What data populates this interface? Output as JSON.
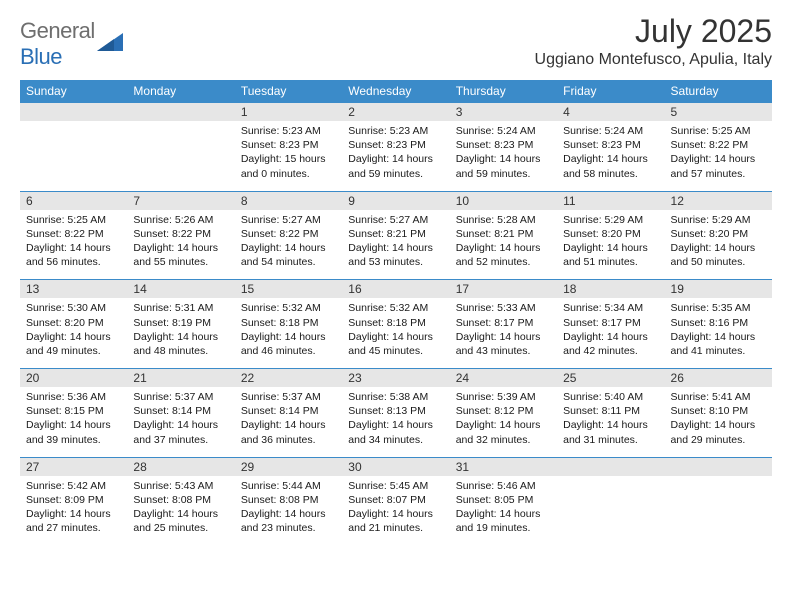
{
  "logo": {
    "text_gray": "General",
    "text_blue": "Blue"
  },
  "title": "July 2025",
  "location": "Uggiano Montefusco, Apulia, Italy",
  "colors": {
    "header_bar": "#3b8bc9",
    "daynum_bg": "#e6e6e6",
    "rule": "#3b8bc9",
    "logo_gray": "#6e6e6e",
    "logo_blue": "#2a6fb5"
  },
  "weekdays": [
    "Sunday",
    "Monday",
    "Tuesday",
    "Wednesday",
    "Thursday",
    "Friday",
    "Saturday"
  ],
  "weeks": [
    [
      null,
      null,
      {
        "n": "1",
        "sr": "5:23 AM",
        "ss": "8:23 PM",
        "dl": "15 hours and 0 minutes."
      },
      {
        "n": "2",
        "sr": "5:23 AM",
        "ss": "8:23 PM",
        "dl": "14 hours and 59 minutes."
      },
      {
        "n": "3",
        "sr": "5:24 AM",
        "ss": "8:23 PM",
        "dl": "14 hours and 59 minutes."
      },
      {
        "n": "4",
        "sr": "5:24 AM",
        "ss": "8:23 PM",
        "dl": "14 hours and 58 minutes."
      },
      {
        "n": "5",
        "sr": "5:25 AM",
        "ss": "8:22 PM",
        "dl": "14 hours and 57 minutes."
      }
    ],
    [
      {
        "n": "6",
        "sr": "5:25 AM",
        "ss": "8:22 PM",
        "dl": "14 hours and 56 minutes."
      },
      {
        "n": "7",
        "sr": "5:26 AM",
        "ss": "8:22 PM",
        "dl": "14 hours and 55 minutes."
      },
      {
        "n": "8",
        "sr": "5:27 AM",
        "ss": "8:22 PM",
        "dl": "14 hours and 54 minutes."
      },
      {
        "n": "9",
        "sr": "5:27 AM",
        "ss": "8:21 PM",
        "dl": "14 hours and 53 minutes."
      },
      {
        "n": "10",
        "sr": "5:28 AM",
        "ss": "8:21 PM",
        "dl": "14 hours and 52 minutes."
      },
      {
        "n": "11",
        "sr": "5:29 AM",
        "ss": "8:20 PM",
        "dl": "14 hours and 51 minutes."
      },
      {
        "n": "12",
        "sr": "5:29 AM",
        "ss": "8:20 PM",
        "dl": "14 hours and 50 minutes."
      }
    ],
    [
      {
        "n": "13",
        "sr": "5:30 AM",
        "ss": "8:20 PM",
        "dl": "14 hours and 49 minutes."
      },
      {
        "n": "14",
        "sr": "5:31 AM",
        "ss": "8:19 PM",
        "dl": "14 hours and 48 minutes."
      },
      {
        "n": "15",
        "sr": "5:32 AM",
        "ss": "8:18 PM",
        "dl": "14 hours and 46 minutes."
      },
      {
        "n": "16",
        "sr": "5:32 AM",
        "ss": "8:18 PM",
        "dl": "14 hours and 45 minutes."
      },
      {
        "n": "17",
        "sr": "5:33 AM",
        "ss": "8:17 PM",
        "dl": "14 hours and 43 minutes."
      },
      {
        "n": "18",
        "sr": "5:34 AM",
        "ss": "8:17 PM",
        "dl": "14 hours and 42 minutes."
      },
      {
        "n": "19",
        "sr": "5:35 AM",
        "ss": "8:16 PM",
        "dl": "14 hours and 41 minutes."
      }
    ],
    [
      {
        "n": "20",
        "sr": "5:36 AM",
        "ss": "8:15 PM",
        "dl": "14 hours and 39 minutes."
      },
      {
        "n": "21",
        "sr": "5:37 AM",
        "ss": "8:14 PM",
        "dl": "14 hours and 37 minutes."
      },
      {
        "n": "22",
        "sr": "5:37 AM",
        "ss": "8:14 PM",
        "dl": "14 hours and 36 minutes."
      },
      {
        "n": "23",
        "sr": "5:38 AM",
        "ss": "8:13 PM",
        "dl": "14 hours and 34 minutes."
      },
      {
        "n": "24",
        "sr": "5:39 AM",
        "ss": "8:12 PM",
        "dl": "14 hours and 32 minutes."
      },
      {
        "n": "25",
        "sr": "5:40 AM",
        "ss": "8:11 PM",
        "dl": "14 hours and 31 minutes."
      },
      {
        "n": "26",
        "sr": "5:41 AM",
        "ss": "8:10 PM",
        "dl": "14 hours and 29 minutes."
      }
    ],
    [
      {
        "n": "27",
        "sr": "5:42 AM",
        "ss": "8:09 PM",
        "dl": "14 hours and 27 minutes."
      },
      {
        "n": "28",
        "sr": "5:43 AM",
        "ss": "8:08 PM",
        "dl": "14 hours and 25 minutes."
      },
      {
        "n": "29",
        "sr": "5:44 AM",
        "ss": "8:08 PM",
        "dl": "14 hours and 23 minutes."
      },
      {
        "n": "30",
        "sr": "5:45 AM",
        "ss": "8:07 PM",
        "dl": "14 hours and 21 minutes."
      },
      {
        "n": "31",
        "sr": "5:46 AM",
        "ss": "8:05 PM",
        "dl": "14 hours and 19 minutes."
      },
      null,
      null
    ]
  ],
  "labels": {
    "sunrise": "Sunrise:",
    "sunset": "Sunset:",
    "daylight": "Daylight:"
  }
}
